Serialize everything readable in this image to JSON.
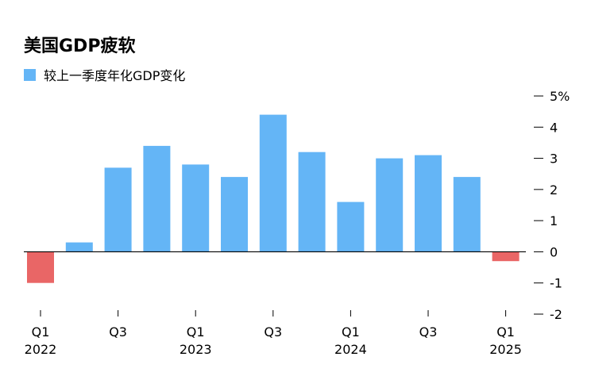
{
  "chart_data": {
    "type": "bar",
    "title": "美国GDP疲软",
    "legend": [
      {
        "name": "较上一季度年化GDP变化",
        "color": "#64b5f6"
      }
    ],
    "colors": {
      "positive": "#64b5f6",
      "negative": "#e96666",
      "axis": "#000000"
    },
    "categories": [
      "2022 Q1",
      "2022 Q2",
      "2022 Q3",
      "2022 Q4",
      "2023 Q1",
      "2023 Q2",
      "2023 Q3",
      "2023 Q4",
      "2024 Q1",
      "2024 Q2",
      "2024 Q3",
      "2024 Q4",
      "2025 Q1"
    ],
    "series": [
      {
        "name": "较上一季度年化GDP变化",
        "values": [
          -1.0,
          0.3,
          2.7,
          3.4,
          2.8,
          2.4,
          4.4,
          3.2,
          1.6,
          3.0,
          3.1,
          2.4,
          -0.3
        ]
      }
    ],
    "x_tick_labels": [
      {
        "index": 0,
        "line1": "Q1",
        "line2": "2022"
      },
      {
        "index": 2,
        "line1": "Q3",
        "line2": ""
      },
      {
        "index": 4,
        "line1": "Q1",
        "line2": "2023"
      },
      {
        "index": 6,
        "line1": "Q3",
        "line2": ""
      },
      {
        "index": 8,
        "line1": "Q1",
        "line2": "2024"
      },
      {
        "index": 10,
        "line1": "Q3",
        "line2": ""
      },
      {
        "index": 12,
        "line1": "Q1",
        "line2": "2025"
      }
    ],
    "y_ticks": [
      {
        "value": 5,
        "label": "5%"
      },
      {
        "value": 4,
        "label": "4"
      },
      {
        "value": 3,
        "label": "3"
      },
      {
        "value": 2,
        "label": "2"
      },
      {
        "value": 1,
        "label": "1"
      },
      {
        "value": 0,
        "label": "0"
      },
      {
        "value": -1,
        "label": "-1"
      },
      {
        "value": -2,
        "label": "-2"
      }
    ],
    "ylim": [
      -2,
      5
    ],
    "y_axis_side": "right",
    "grid": false,
    "legend_position": "top-left"
  }
}
